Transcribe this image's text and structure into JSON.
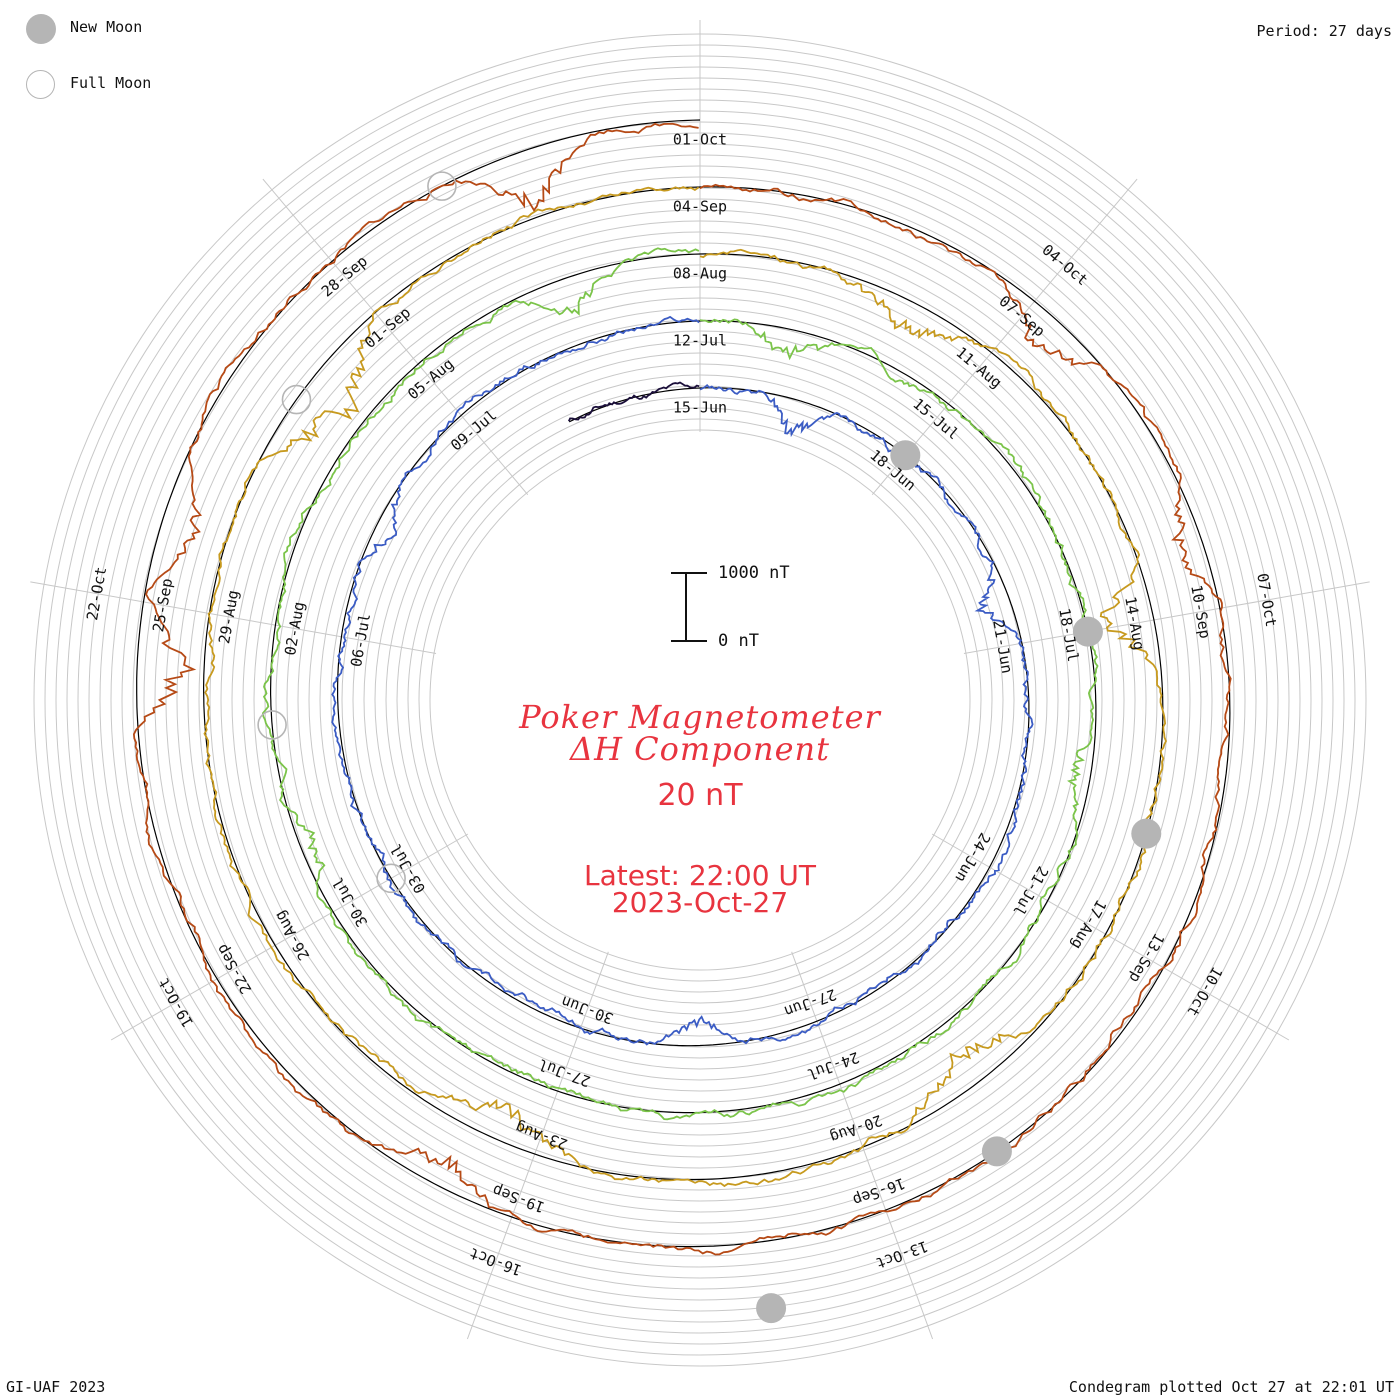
{
  "header": {
    "period": "Period: 27 days"
  },
  "legend": [
    {
      "symbol": "new-moon",
      "label": "New Moon"
    },
    {
      "symbol": "full-moon",
      "label": "Full Moon"
    }
  ],
  "center": {
    "title_line1": "Poker Magnetometer",
    "title_line2": "ΔH Component",
    "ring_scale": "20 nT",
    "latest_line1": "Latest: 22:00 UT",
    "latest_line2": "2023-Oct-27"
  },
  "scale_bar": {
    "top_label": "1000 nT",
    "bottom_label": "0 nT"
  },
  "footer": {
    "left": "GI-UAF 2023",
    "right": "Condegram plotted Oct 27 at 22:01 UT"
  },
  "colors": {
    "moon": "#b5b5b5",
    "title": "#e8343f",
    "grid": "#c8c8c8",
    "turns": [
      "#1b0f3a",
      "#2b1f8f",
      "#3b5cc4",
      "#2fb1a6",
      "#7bc44a",
      "#b7b52b",
      "#c79a1f",
      "#b64a16"
    ]
  },
  "chart_data": {
    "type": "condegram-spiral",
    "period_days": 27,
    "angular_origin": "15-Jun at top, clockwise",
    "turns": [
      {
        "labels": [
          "15-Jun",
          "18-Jun",
          "21-Jun",
          "24-Jun",
          "27-Jun",
          "30-Jun",
          "03-Jul",
          "06-Jul",
          "09-Jul"
        ]
      },
      {
        "labels": [
          "12-Jul",
          "15-Jul",
          "18-Jul",
          "21-Jul",
          "24-Jul",
          "27-Jul",
          "30-Jul",
          "02-Aug",
          "05-Aug"
        ]
      },
      {
        "labels": [
          "08-Aug",
          "11-Aug",
          "14-Aug",
          "17-Aug",
          "20-Aug",
          "23-Aug",
          "26-Aug",
          "29-Aug",
          "01-Sep"
        ]
      },
      {
        "labels": [
          "04-Sep",
          "07-Sep",
          "10-Sep",
          "13-Sep",
          "16-Sep",
          "19-Sep",
          "22-Sep",
          "25-Sep",
          "28-Sep"
        ]
      },
      {
        "labels": [
          "01-Oct",
          "04-Oct",
          "07-Oct",
          "10-Oct",
          "13-Oct",
          "16-Oct",
          "19-Oct",
          "22-Oct"
        ]
      }
    ],
    "new_moons": [
      "18-Jun",
      "18-Jul",
      "16-Aug",
      "15-Sep",
      "14-Oct"
    ],
    "full_moons": [
      "03-Jul",
      "01-Aug",
      "31-Aug",
      "29-Sep"
    ],
    "ring_spacing_nT": 20,
    "scale_bar_nT": [
      0,
      1000
    ],
    "series": [
      {
        "turn": 0,
        "level": 0.0,
        "events": [
          [
            0.02,
            -70,
            0.03
          ],
          [
            0.05,
            -45,
            0.02
          ],
          [
            0.14,
            -35,
            0.02
          ],
          [
            0.33,
            -40,
            0.03
          ],
          [
            0.55,
            -30,
            0.02
          ],
          [
            0.67,
            -35,
            0.03
          ],
          [
            0.84,
            -25,
            0.02
          ]
        ]
      },
      {
        "turn": 1,
        "level": 0.0,
        "events": [
          [
            0.05,
            -40,
            0.02
          ],
          [
            0.2,
            -35,
            0.02
          ],
          [
            0.5,
            -30,
            0.02
          ],
          [
            0.83,
            -25,
            0.02
          ]
        ]
      },
      {
        "turn": 2,
        "level": 0.0,
        "events": [
          [
            0.04,
            -35,
            0.02
          ],
          [
            0.28,
            -30,
            0.02
          ],
          [
            0.69,
            -25,
            0.02
          ],
          [
            0.95,
            -40,
            0.02
          ]
        ]
      },
      {
        "turn": 3,
        "level": 0.0,
        "events": [
          [
            0.08,
            -40,
            0.03
          ],
          [
            0.22,
            -60,
            0.02
          ],
          [
            0.4,
            -45,
            0.03
          ],
          [
            0.57,
            -40,
            0.03
          ],
          [
            0.86,
            -70,
            0.03
          ]
        ]
      },
      {
        "turn": 4,
        "level": 0.0,
        "events": [
          [
            0.95,
            -65,
            0.02
          ],
          [
            0.12,
            -45,
            0.02
          ],
          [
            0.2,
            -40,
            0.02
          ],
          [
            0.58,
            -35,
            0.02
          ],
          [
            0.76,
            -55,
            0.02
          ],
          [
            0.8,
            -45,
            0.02
          ]
        ]
      }
    ]
  }
}
